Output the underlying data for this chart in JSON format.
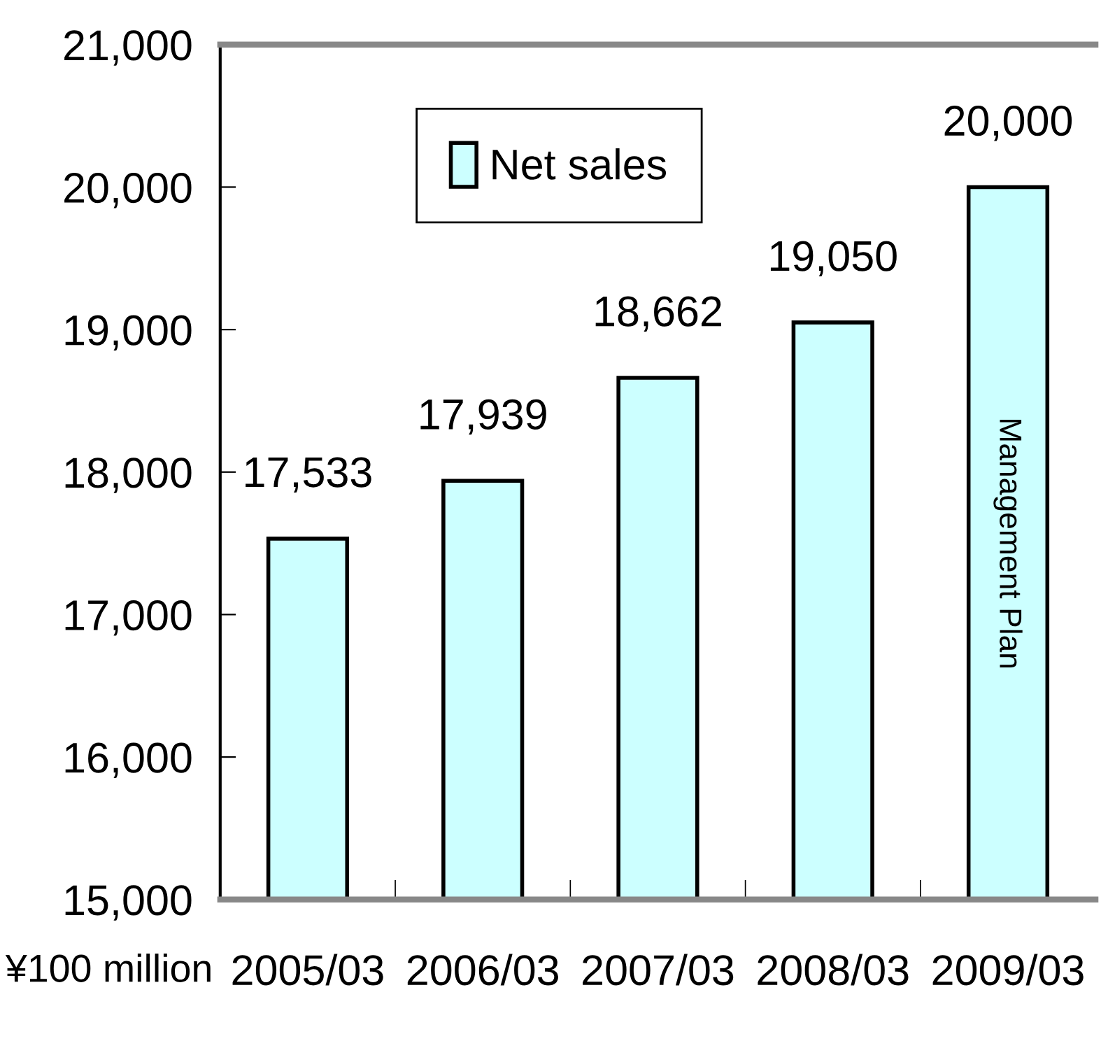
{
  "chart_data": {
    "type": "bar",
    "categories": [
      "2005/03",
      "2006/03",
      "2007/03",
      "2008/03",
      "2009/03"
    ],
    "series": [
      {
        "name": "Net sales",
        "color": "#ccffff",
        "values": [
          17533,
          17939,
          18662,
          19050,
          20000
        ]
      }
    ],
    "ylabel": "¥100 million",
    "ylim": [
      15000,
      21000
    ],
    "yticks": [
      {
        "value": 15000,
        "label": "15,000"
      },
      {
        "value": 16000,
        "label": "16,000"
      },
      {
        "value": 17000,
        "label": "17,000"
      },
      {
        "value": 18000,
        "label": "18,000"
      },
      {
        "value": 19000,
        "label": "19,000"
      },
      {
        "value": 20000,
        "label": "20,000"
      },
      {
        "value": 21000,
        "label": "21,000"
      }
    ],
    "annotations": [
      "Management Plan"
    ],
    "value_labels": [
      "17,533",
      "17,939",
      "18,662",
      "19,050",
      "20,000"
    ],
    "legend": "top left",
    "grid": false
  }
}
